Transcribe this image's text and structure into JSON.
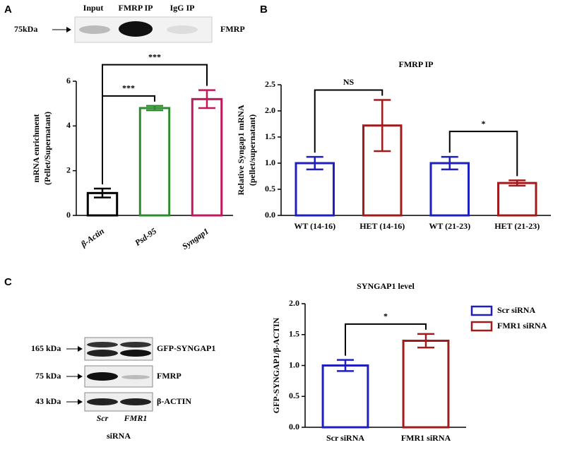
{
  "panel_labels": [
    "A",
    "B",
    "C"
  ],
  "blot_a": {
    "lanes": [
      "Input",
      "FMRP IP",
      "IgG IP"
    ],
    "marker": "75kDa",
    "protein": "FMRP"
  },
  "blot_c": {
    "markers": [
      "165 kDa",
      "75 kDa",
      "43 kDa"
    ],
    "proteins": [
      "GFP-SYNGAP1",
      "FMRP",
      "β-ACTIN"
    ],
    "lanes": [
      "Scr",
      "FMR1"
    ],
    "xlabel": "siRNA"
  },
  "chart_data": [
    {
      "type": "bar",
      "ylabel": [
        "mRNA enrichment",
        "(Pellet/Supernatant)"
      ],
      "categories": [
        "β-Actin",
        "Psd-95",
        "Syngap1"
      ],
      "category_style": "italic",
      "values": [
        1.0,
        4.8,
        5.2
      ],
      "errors": [
        0.2,
        0.1,
        0.4
      ],
      "colors": [
        "#000000",
        "#2e8b2e",
        "#c2185b"
      ],
      "ylim": [
        0,
        6
      ],
      "yticks": [
        0,
        2,
        4,
        6
      ],
      "annotations": [
        {
          "text": "***",
          "between": [
            0,
            1
          ]
        },
        {
          "text": "***",
          "between": [
            0,
            2
          ]
        }
      ]
    },
    {
      "type": "bar",
      "title": "FMRP IP",
      "ylabel": [
        "Relative Syngap1 mRNA",
        "(pellet/supernatant)"
      ],
      "categories": [
        "WT (14-16)",
        "HET (14-16)",
        "WT (21-23)",
        "HET (21-23)"
      ],
      "values": [
        1.0,
        1.72,
        1.0,
        0.62
      ],
      "errors": [
        0.12,
        0.49,
        0.12,
        0.05
      ],
      "colors": [
        "#1f1fbf",
        "#a01c1c",
        "#1f1fbf",
        "#a01c1c"
      ],
      "ylim": [
        0,
        2.5
      ],
      "yticks": [
        {
          "value": 0,
          "label": "0.0"
        },
        {
          "value": 0.5,
          "label": "0.5"
        },
        {
          "value": 1,
          "label": "1.0"
        },
        {
          "value": 1.5,
          "label": "1.5"
        },
        {
          "value": 2,
          "label": "2.0"
        },
        {
          "value": 2.5,
          "label": "2.5"
        }
      ],
      "annotations": [
        {
          "text": "NS",
          "between": [
            0,
            1
          ]
        },
        {
          "text": "*",
          "between": [
            2,
            3
          ]
        }
      ]
    },
    {
      "type": "bar",
      "title": "SYNGAP1 level",
      "ylabel": [
        "GFP-SYNGAP1/β-ACTIN"
      ],
      "categories": [
        "Scr siRNA",
        "FMR1 siRNA"
      ],
      "values": [
        1.0,
        1.4
      ],
      "errors": [
        0.09,
        0.11
      ],
      "colors": [
        "#1f1fbf",
        "#a01c1c"
      ],
      "ylim": [
        0,
        2
      ],
      "yticks": [
        {
          "value": 0,
          "label": "0.0"
        },
        {
          "value": 0.5,
          "label": "0.5"
        },
        {
          "value": 1,
          "label": "1.0"
        },
        {
          "value": 1.5,
          "label": "1.5"
        },
        {
          "value": 2,
          "label": "2.0"
        }
      ],
      "legend": "upper right",
      "annotations": [
        {
          "text": "*",
          "between": [
            0,
            1
          ]
        }
      ]
    }
  ]
}
